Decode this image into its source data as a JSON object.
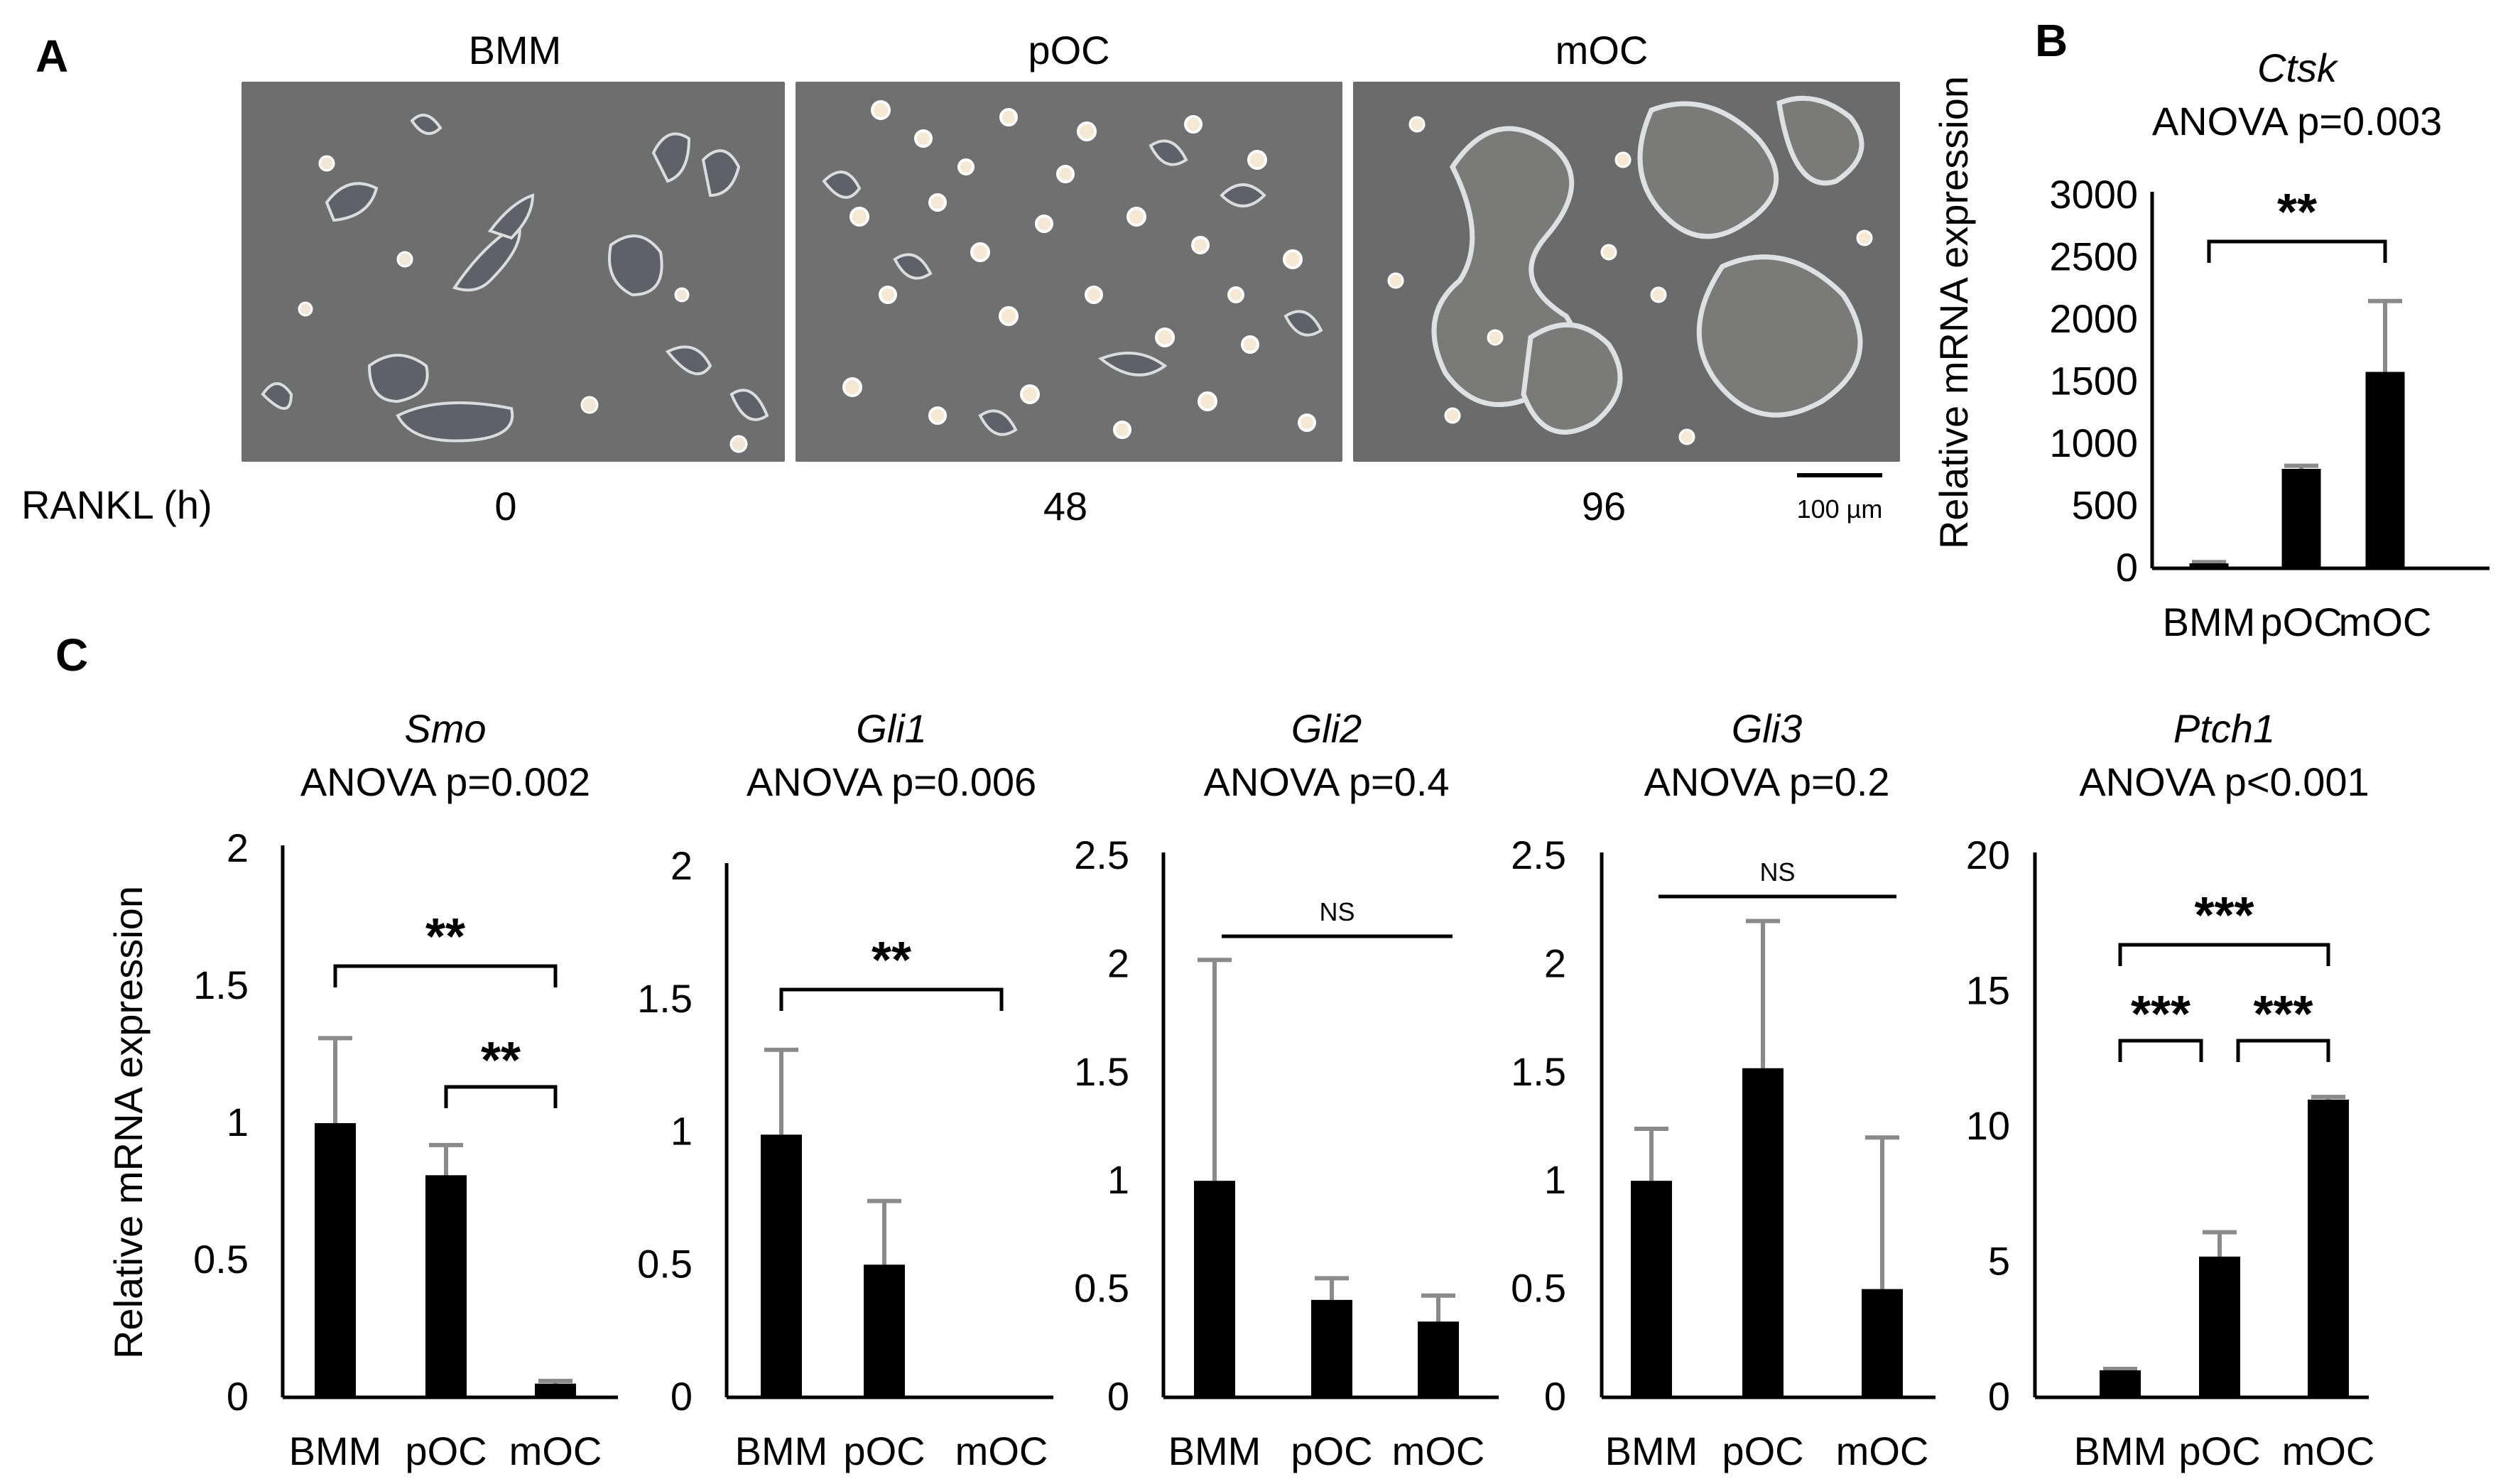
{
  "panel_labels": {
    "a": "A",
    "b": "B",
    "c": "C"
  },
  "panel_a": {
    "images": [
      {
        "title": "BMM",
        "time": "0"
      },
      {
        "title": "pOC",
        "time": "48"
      },
      {
        "title": "mOC",
        "time": "96"
      }
    ],
    "time_axis_label": "RANKL (h)",
    "scale_bar_label": "100 µm"
  },
  "colors": {
    "bar": "#000000",
    "error_bar": "#8a8a8a",
    "axis": "#000000",
    "micrograph_bg": "#6e6e6e"
  },
  "chart_data": [
    {
      "id": "ctsk",
      "panel": "B",
      "type": "bar",
      "gene": "Ctsk",
      "subtitle": "ANOVA p=0.003",
      "ylabel": "Relative mRNA expression",
      "categories": [
        "BMM",
        "pOC",
        "mOC"
      ],
      "values": [
        40,
        800,
        1580
      ],
      "errors": [
        10,
        25,
        570
      ],
      "ylim": [
        0,
        3000
      ],
      "yticks": [
        "0",
        "500",
        "1000",
        "1500",
        "2000",
        "2500",
        "3000"
      ],
      "brackets": [
        {
          "from": 0,
          "to": 2,
          "label": "**"
        }
      ]
    },
    {
      "id": "smo",
      "panel": "C",
      "type": "bar",
      "gene": "Smo",
      "subtitle": "ANOVA p=0.002",
      "ylabel": "Relative mRNA expression",
      "categories": [
        "BMM",
        "pOC",
        "mOC"
      ],
      "values": [
        1.0,
        0.81,
        0.05
      ],
      "errors": [
        0.31,
        0.11,
        0.01
      ],
      "ylim": [
        0,
        2
      ],
      "yticks": [
        "0",
        "0.5",
        "1",
        "1.5",
        "2"
      ],
      "brackets": [
        {
          "from": 0,
          "to": 2,
          "label": "**"
        },
        {
          "from": 1,
          "to": 2,
          "label": "**"
        }
      ]
    },
    {
      "id": "gli1",
      "panel": "C",
      "type": "bar",
      "gene": "Gli1",
      "subtitle": "ANOVA p=0.006",
      "categories": [
        "BMM",
        "pOC",
        "mOC"
      ],
      "values": [
        0.99,
        0.5,
        0
      ],
      "errors": [
        0.32,
        0.24,
        0
      ],
      "ylim": [
        0,
        2
      ],
      "yticks": [
        "0",
        "0.5",
        "1",
        "1.5",
        "2"
      ],
      "brackets": [
        {
          "from": 0,
          "to": 2,
          "label": "**"
        }
      ]
    },
    {
      "id": "gli2",
      "panel": "C",
      "type": "bar",
      "gene": "Gli2",
      "subtitle": "ANOVA p=0.4",
      "categories": [
        "BMM",
        "pOC",
        "mOC"
      ],
      "values": [
        1.0,
        0.45,
        0.35
      ],
      "errors": [
        1.02,
        0.1,
        0.12
      ],
      "ylim": [
        0,
        2.5
      ],
      "yticks": [
        "0",
        "0.5",
        "1",
        "1.5",
        "2",
        "2.5"
      ],
      "ns_line": {
        "label": "NS"
      }
    },
    {
      "id": "gli3",
      "panel": "C",
      "type": "bar",
      "gene": "Gli3",
      "subtitle": "ANOVA p=0.2",
      "categories": [
        "BMM",
        "pOC",
        "mOC"
      ],
      "values": [
        1.0,
        1.52,
        0.5
      ],
      "errors": [
        0.24,
        0.68,
        0.7
      ],
      "ylim": [
        0,
        2.5
      ],
      "yticks": [
        "0",
        "0.5",
        "1",
        "1.5",
        "2",
        "2.5"
      ],
      "ns_line": {
        "label": "NS"
      }
    },
    {
      "id": "ptch1",
      "panel": "C",
      "type": "bar",
      "gene": "Ptch1",
      "subtitle": "ANOVA p<0.001",
      "categories": [
        "BMM",
        "pOC",
        "mOC"
      ],
      "values": [
        1.0,
        5.2,
        11.0
      ],
      "errors": [
        0.05,
        0.9,
        0.1
      ],
      "ylim": [
        0,
        20
      ],
      "yticks": [
        "0",
        "5",
        "10",
        "15",
        "20"
      ],
      "brackets": [
        {
          "from": 0,
          "to": 2,
          "label": "***"
        },
        {
          "from": 0,
          "to": 1,
          "label": "***"
        },
        {
          "from": 1,
          "to": 2,
          "label": "***"
        }
      ]
    }
  ]
}
